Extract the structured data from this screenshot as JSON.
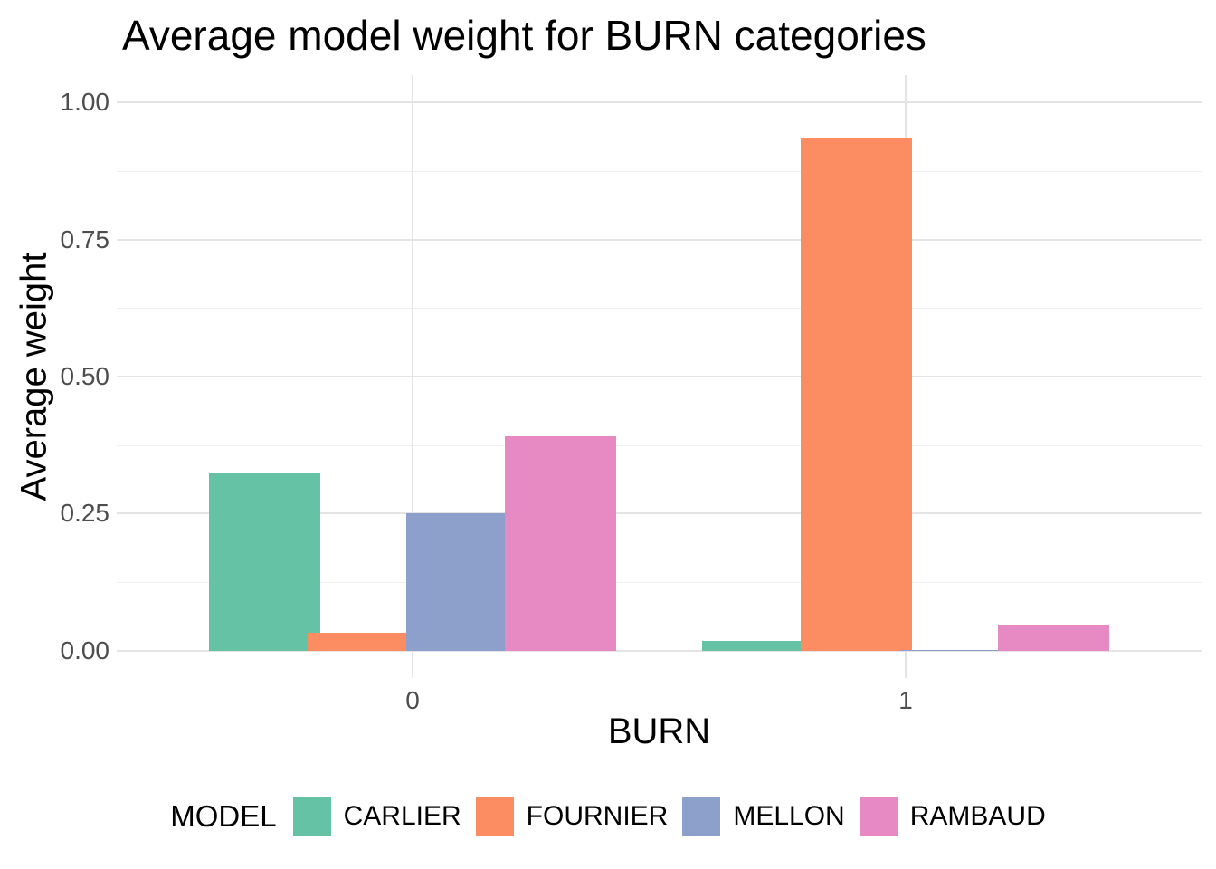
{
  "title": "Average model weight for BURN categories",
  "chart_data": {
    "type": "bar",
    "title": "Average model weight for BURN categories",
    "xlabel": "BURN",
    "ylabel": "Average weight",
    "categories": [
      "0",
      "1"
    ],
    "series": [
      {
        "name": "CARLIER",
        "color": "#66C2A5",
        "values": [
          0.325,
          0.018
        ]
      },
      {
        "name": "FOURNIER",
        "color": "#FC8D62",
        "values": [
          0.033,
          0.934
        ]
      },
      {
        "name": "MELLON",
        "color": "#8DA0CB",
        "values": [
          0.251,
          0.002
        ]
      },
      {
        "name": "RAMBAUD",
        "color": "#E78AC3",
        "values": [
          0.391,
          0.048
        ]
      }
    ],
    "ylim": [
      0,
      1
    ],
    "y_major_ticks": {
      "values": [
        0,
        0.25,
        0.5,
        0.75,
        1.0
      ],
      "labels": [
        "0.00",
        "0.25",
        "0.50",
        "0.75",
        "1.00"
      ]
    },
    "y_minor_ticks": [
      0.125,
      0.375,
      0.625,
      0.875
    ],
    "grid": "major+minor horizontal, vertical at category centers",
    "legend_title": "MODEL",
    "legend_position": "bottom"
  },
  "styles": {
    "background": "#FFFFFF",
    "grid_major_color": "#E4E4E4",
    "grid_minor_color": "#F0F0F0",
    "tick_label_color": "#4D4D4D",
    "text_color": "#000000"
  }
}
